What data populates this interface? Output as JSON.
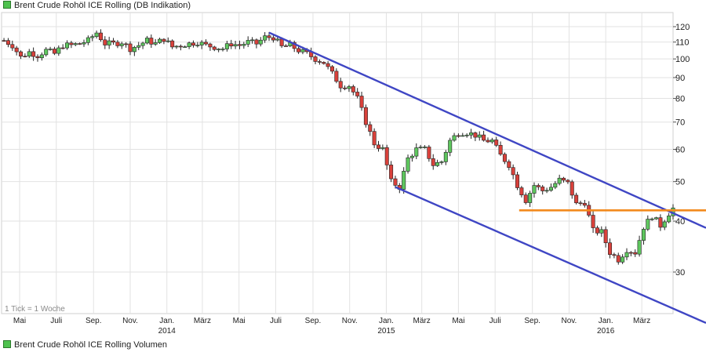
{
  "legend": {
    "price_series": "Brent Crude Rohöl ICE Rolling (DB Indikation)",
    "volume_series": "Brent Crude Rohöl ICE Rolling Volumen"
  },
  "footnote": "1 Tick = 1 Woche",
  "colors": {
    "up_candle": "#5ec75e",
    "down_candle": "#d9413b",
    "wick": "#222222",
    "trend_channel": "#3f46c4",
    "resistance": "#f28a1e",
    "grid": "#e2e2e2"
  },
  "chart_data": {
    "type": "candlestick",
    "title": "Brent Crude Rohöl ICE Rolling (DB Indikation)",
    "interval": "weekly",
    "y_scale": "log",
    "y_axis": {
      "position": "right",
      "ylim": [
        25,
        125
      ],
      "ticks": [
        30,
        40,
        50,
        60,
        70,
        80,
        90,
        100,
        110,
        120
      ]
    },
    "x_axis": {
      "range": [
        "2013-04-01",
        "2016-04-22"
      ],
      "month_ticks": [
        {
          "date": "2013-05-01",
          "label": "Mai"
        },
        {
          "date": "2013-07-01",
          "label": "Juli"
        },
        {
          "date": "2013-09-01",
          "label": "Sep."
        },
        {
          "date": "2013-11-01",
          "label": "Nov."
        },
        {
          "date": "2014-01-01",
          "label": "Jan."
        },
        {
          "date": "2014-03-01",
          "label": "März"
        },
        {
          "date": "2014-05-01",
          "label": "Mai"
        },
        {
          "date": "2014-07-01",
          "label": "Juli"
        },
        {
          "date": "2014-09-01",
          "label": "Sep."
        },
        {
          "date": "2014-11-01",
          "label": "Nov."
        },
        {
          "date": "2015-01-01",
          "label": "Jan."
        },
        {
          "date": "2015-03-01",
          "label": "März"
        },
        {
          "date": "2015-05-01",
          "label": "Mai"
        },
        {
          "date": "2015-07-01",
          "label": "Juli"
        },
        {
          "date": "2015-09-01",
          "label": "Sep."
        },
        {
          "date": "2015-11-01",
          "label": "Nov."
        },
        {
          "date": "2016-01-01",
          "label": "Jan."
        },
        {
          "date": "2016-03-01",
          "label": "März"
        }
      ],
      "year_ticks": [
        {
          "date": "2014-01-01",
          "label": "2014"
        },
        {
          "date": "2015-01-01",
          "label": "2015"
        },
        {
          "date": "2016-01-01",
          "label": "2016"
        }
      ]
    },
    "grid": true,
    "close_path": [
      [
        "2013-04-05",
        111
      ],
      [
        "2013-04-19",
        108
      ],
      [
        "2013-05-03",
        101
      ],
      [
        "2013-05-17",
        104
      ],
      [
        "2013-05-31",
        102
      ],
      [
        "2013-06-14",
        105
      ],
      [
        "2013-06-28",
        103
      ],
      [
        "2013-07-12",
        108
      ],
      [
        "2013-07-26",
        108
      ],
      [
        "2013-08-09",
        109
      ],
      [
        "2013-08-23",
        111
      ],
      [
        "2013-09-06",
        116
      ],
      [
        "2013-09-20",
        109
      ],
      [
        "2013-10-04",
        109
      ],
      [
        "2013-10-18",
        110
      ],
      [
        "2013-11-01",
        106
      ],
      [
        "2013-11-15",
        108
      ],
      [
        "2013-11-29",
        111
      ],
      [
        "2013-12-13",
        109
      ],
      [
        "2013-12-27",
        112
      ],
      [
        "2014-01-10",
        107
      ],
      [
        "2014-01-24",
        108
      ],
      [
        "2014-02-07",
        109
      ],
      [
        "2014-02-21",
        110
      ],
      [
        "2014-03-07",
        108
      ],
      [
        "2014-03-21",
        107
      ],
      [
        "2014-04-04",
        106
      ],
      [
        "2014-04-18",
        109
      ],
      [
        "2014-05-02",
        108
      ],
      [
        "2014-05-16",
        110
      ],
      [
        "2014-05-30",
        109
      ],
      [
        "2014-06-13",
        113
      ],
      [
        "2014-06-27",
        113
      ],
      [
        "2014-07-11",
        107
      ],
      [
        "2014-07-25",
        108
      ],
      [
        "2014-08-08",
        105
      ],
      [
        "2014-08-22",
        103
      ],
      [
        "2014-09-05",
        100
      ],
      [
        "2014-09-19",
        98
      ],
      [
        "2014-10-03",
        92
      ],
      [
        "2014-10-17",
        86
      ],
      [
        "2014-10-31",
        86
      ],
      [
        "2014-11-14",
        80
      ],
      [
        "2014-11-28",
        70
      ],
      [
        "2014-12-12",
        62
      ],
      [
        "2014-12-26",
        60
      ],
      [
        "2015-01-09",
        50
      ],
      [
        "2015-01-23",
        48.5
      ],
      [
        "2015-02-06",
        57
      ],
      [
        "2015-02-20",
        60
      ],
      [
        "2015-03-06",
        60
      ],
      [
        "2015-03-20",
        55
      ],
      [
        "2015-04-03",
        56
      ],
      [
        "2015-04-17",
        63
      ],
      [
        "2015-05-01",
        66
      ],
      [
        "2015-05-15",
        66
      ],
      [
        "2015-05-29",
        65
      ],
      [
        "2015-06-12",
        63
      ],
      [
        "2015-06-26",
        63
      ],
      [
        "2015-07-10",
        58
      ],
      [
        "2015-07-24",
        55
      ],
      [
        "2015-08-07",
        49
      ],
      [
        "2015-08-21",
        45
      ],
      [
        "2015-09-04",
        49
      ],
      [
        "2015-09-18",
        47.5
      ],
      [
        "2015-10-02",
        48.5
      ],
      [
        "2015-10-16",
        50.5
      ],
      [
        "2015-10-30",
        49.5
      ],
      [
        "2015-11-13",
        44
      ],
      [
        "2015-11-27",
        44.5
      ],
      [
        "2015-12-11",
        37.9
      ],
      [
        "2015-12-25",
        37.6
      ],
      [
        "2016-01-08",
        33.5
      ],
      [
        "2016-01-22",
        32.2
      ],
      [
        "2016-02-05",
        34.1
      ],
      [
        "2016-02-19",
        33.5
      ],
      [
        "2016-03-04",
        38.7
      ],
      [
        "2016-03-18",
        41.2
      ],
      [
        "2016-04-01",
        39.0
      ],
      [
        "2016-04-15",
        41.8
      ],
      [
        "2016-04-22",
        43.0
      ]
    ],
    "annotations": [
      {
        "type": "trendline",
        "name": "upper-channel",
        "from": [
          "2014-06-20",
          116
        ],
        "to": [
          "2016-04-22",
          38.5
        ]
      },
      {
        "type": "trendline",
        "name": "lower-channel",
        "from": [
          "2015-01-16",
          48.5
        ],
        "to": [
          "2016-04-22",
          22.5
        ]
      },
      {
        "type": "horizontal",
        "name": "resistance",
        "from": "2015-08-10",
        "to": "2016-04-22",
        "value": 42.5
      }
    ]
  }
}
